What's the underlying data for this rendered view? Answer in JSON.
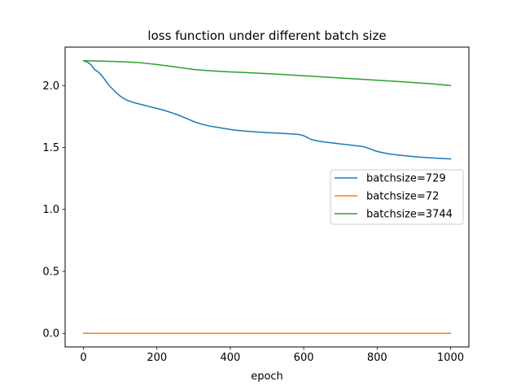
{
  "chart_data": {
    "type": "line",
    "title": "loss function under different batch size",
    "xlabel": "epoch",
    "ylabel": "",
    "xlim": [
      -50,
      1050
    ],
    "ylim": [
      -0.11,
      2.31
    ],
    "xticks": [
      0,
      200,
      400,
      600,
      800,
      1000
    ],
    "xtick_labels": [
      "0",
      "200",
      "400",
      "600",
      "800",
      "1000"
    ],
    "yticks": [
      0.0,
      0.5,
      1.0,
      1.5,
      2.0
    ],
    "ytick_labels": [
      "0.0",
      "0.5",
      "1.0",
      "1.5",
      "2.0"
    ],
    "grid": false,
    "legend_position": "center-right",
    "series": [
      {
        "name": "batchsize=729",
        "color": "#1f77b4",
        "x": [
          0,
          10,
          20,
          30,
          40,
          50,
          60,
          70,
          80,
          90,
          100,
          110,
          120,
          140,
          160,
          180,
          200,
          220,
          240,
          260,
          280,
          300,
          320,
          340,
          360,
          380,
          400,
          420,
          440,
          460,
          480,
          500,
          520,
          540,
          560,
          580,
          590,
          600,
          610,
          620,
          640,
          660,
          680,
          700,
          720,
          740,
          760,
          770,
          780,
          790,
          800,
          820,
          840,
          860,
          880,
          900,
          920,
          940,
          960,
          980,
          1000
        ],
        "y": [
          2.2,
          2.19,
          2.17,
          2.13,
          2.11,
          2.08,
          2.04,
          2.0,
          1.97,
          1.94,
          1.915,
          1.895,
          1.88,
          1.86,
          1.845,
          1.83,
          1.815,
          1.8,
          1.78,
          1.76,
          1.735,
          1.71,
          1.69,
          1.675,
          1.665,
          1.655,
          1.645,
          1.638,
          1.632,
          1.628,
          1.624,
          1.62,
          1.617,
          1.614,
          1.611,
          1.607,
          1.603,
          1.595,
          1.58,
          1.565,
          1.552,
          1.543,
          1.536,
          1.529,
          1.522,
          1.515,
          1.508,
          1.5,
          1.49,
          1.478,
          1.468,
          1.455,
          1.445,
          1.438,
          1.432,
          1.426,
          1.421,
          1.417,
          1.414,
          1.411,
          1.408
        ]
      },
      {
        "name": "batchsize=72",
        "color": "#ff7f0e",
        "x": [
          0,
          1000
        ],
        "y": [
          0.0,
          0.0
        ]
      },
      {
        "name": "batchsize=3744",
        "color": "#2ca02c",
        "x": [
          0,
          50,
          100,
          150,
          200,
          250,
          300,
          350,
          400,
          450,
          500,
          550,
          600,
          650,
          700,
          750,
          800,
          850,
          900,
          950,
          1000
        ],
        "y": [
          2.2,
          2.197,
          2.193,
          2.185,
          2.17,
          2.15,
          2.13,
          2.118,
          2.11,
          2.103,
          2.096,
          2.088,
          2.079,
          2.07,
          2.061,
          2.052,
          2.043,
          2.034,
          2.024,
          2.014,
          2.0
        ]
      }
    ]
  }
}
